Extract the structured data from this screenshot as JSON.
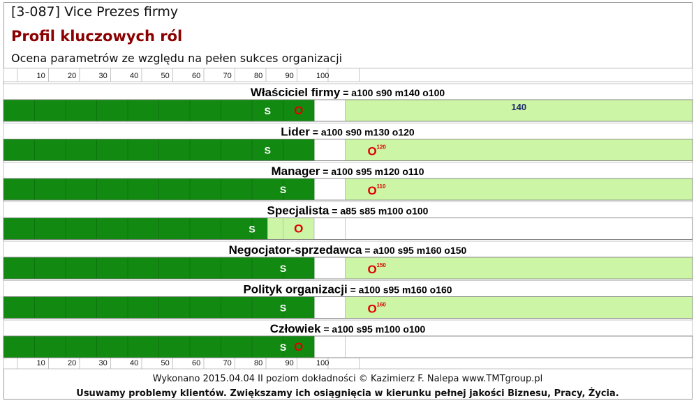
{
  "header": {
    "code": "[3-087] Vice Prezes firmy",
    "title": "Profil kluczowych ról",
    "subtitle": "Ocena parametrów ze względu na pełen sukces organizacji"
  },
  "chart_data": {
    "type": "bar",
    "x_ticks": [
      "10",
      "20",
      "30",
      "40",
      "50",
      "60",
      "70",
      "80",
      "90",
      "100"
    ],
    "xlim": [
      0,
      110
    ],
    "colors": {
      "fill": "#128a12",
      "light": "#ccf5a6",
      "s_marker": "#ffffff",
      "o_marker": "#e00000"
    },
    "rows": [
      {
        "name": "Właściciel firmy",
        "params": " = a100  s90 m140  o100",
        "a": 100,
        "s": 90,
        "m": 140,
        "o": 100,
        "overflow_text": "140",
        "o_sup": ""
      },
      {
        "name": "Lider",
        "params": " = a100  s90 m130  o120",
        "a": 100,
        "s": 90,
        "m": 130,
        "o": 120,
        "overflow_text": "",
        "o_sup": "120"
      },
      {
        "name": "Manager",
        "params": " = a100 s95 m120  o110",
        "a": 100,
        "s": 95,
        "m": 120,
        "o": 110,
        "overflow_text": "",
        "o_sup": "110"
      },
      {
        "name": "Specjalista",
        "params": " = a85  s85 m100  o100",
        "a": 85,
        "s": 85,
        "m": 100,
        "o": 100,
        "overflow_text": "",
        "o_sup": ""
      },
      {
        "name": "Negocjator-sprzedawca",
        "params": " = a100 s95 m160  o150",
        "a": 100,
        "s": 95,
        "m": 160,
        "o": 150,
        "overflow_text": "",
        "o_sup": "150"
      },
      {
        "name": "Polityk organizacji",
        "params": " = a100  s95  m160  o160",
        "a": 100,
        "s": 95,
        "m": 160,
        "o": 160,
        "overflow_text": "",
        "o_sup": "160"
      },
      {
        "name": "Człowiek",
        "params": " = a100  s95  m100  o100",
        "a": 100,
        "s": 95,
        "m": 100,
        "o": 100,
        "overflow_text": "",
        "o_sup": ""
      }
    ],
    "s_label": "S",
    "o_label": "O"
  },
  "footer": {
    "line1": "Wykonano 2015.04.04   II poziom dokładności    © Kazimierz F. Nalepa    www.TMTgroup.pl",
    "line2": "Usuwamy problemy klientów. Zwiększamy ich osiągnięcia w kierunku pełnej jakości Biznesu, Pracy, Życia."
  }
}
